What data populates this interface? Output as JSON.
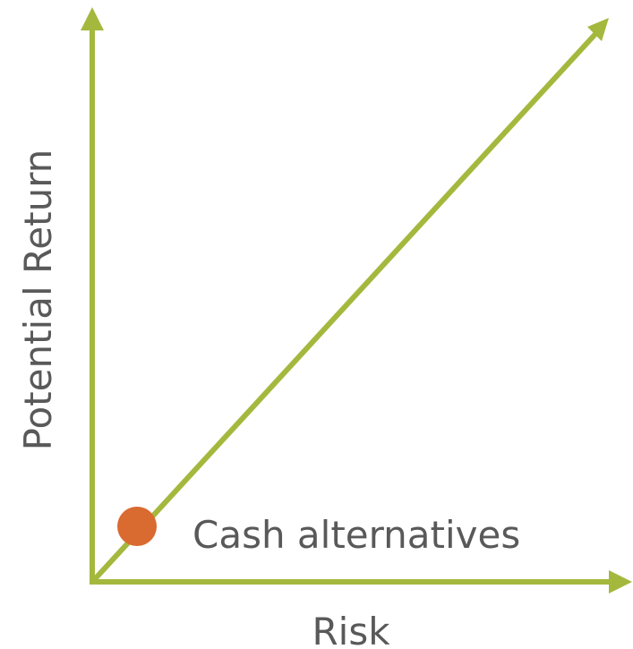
{
  "y_axis": {
    "label": "Potential Return"
  },
  "x_axis": {
    "label": "Risk"
  },
  "point": {
    "label": "Cash alternatives"
  }
}
